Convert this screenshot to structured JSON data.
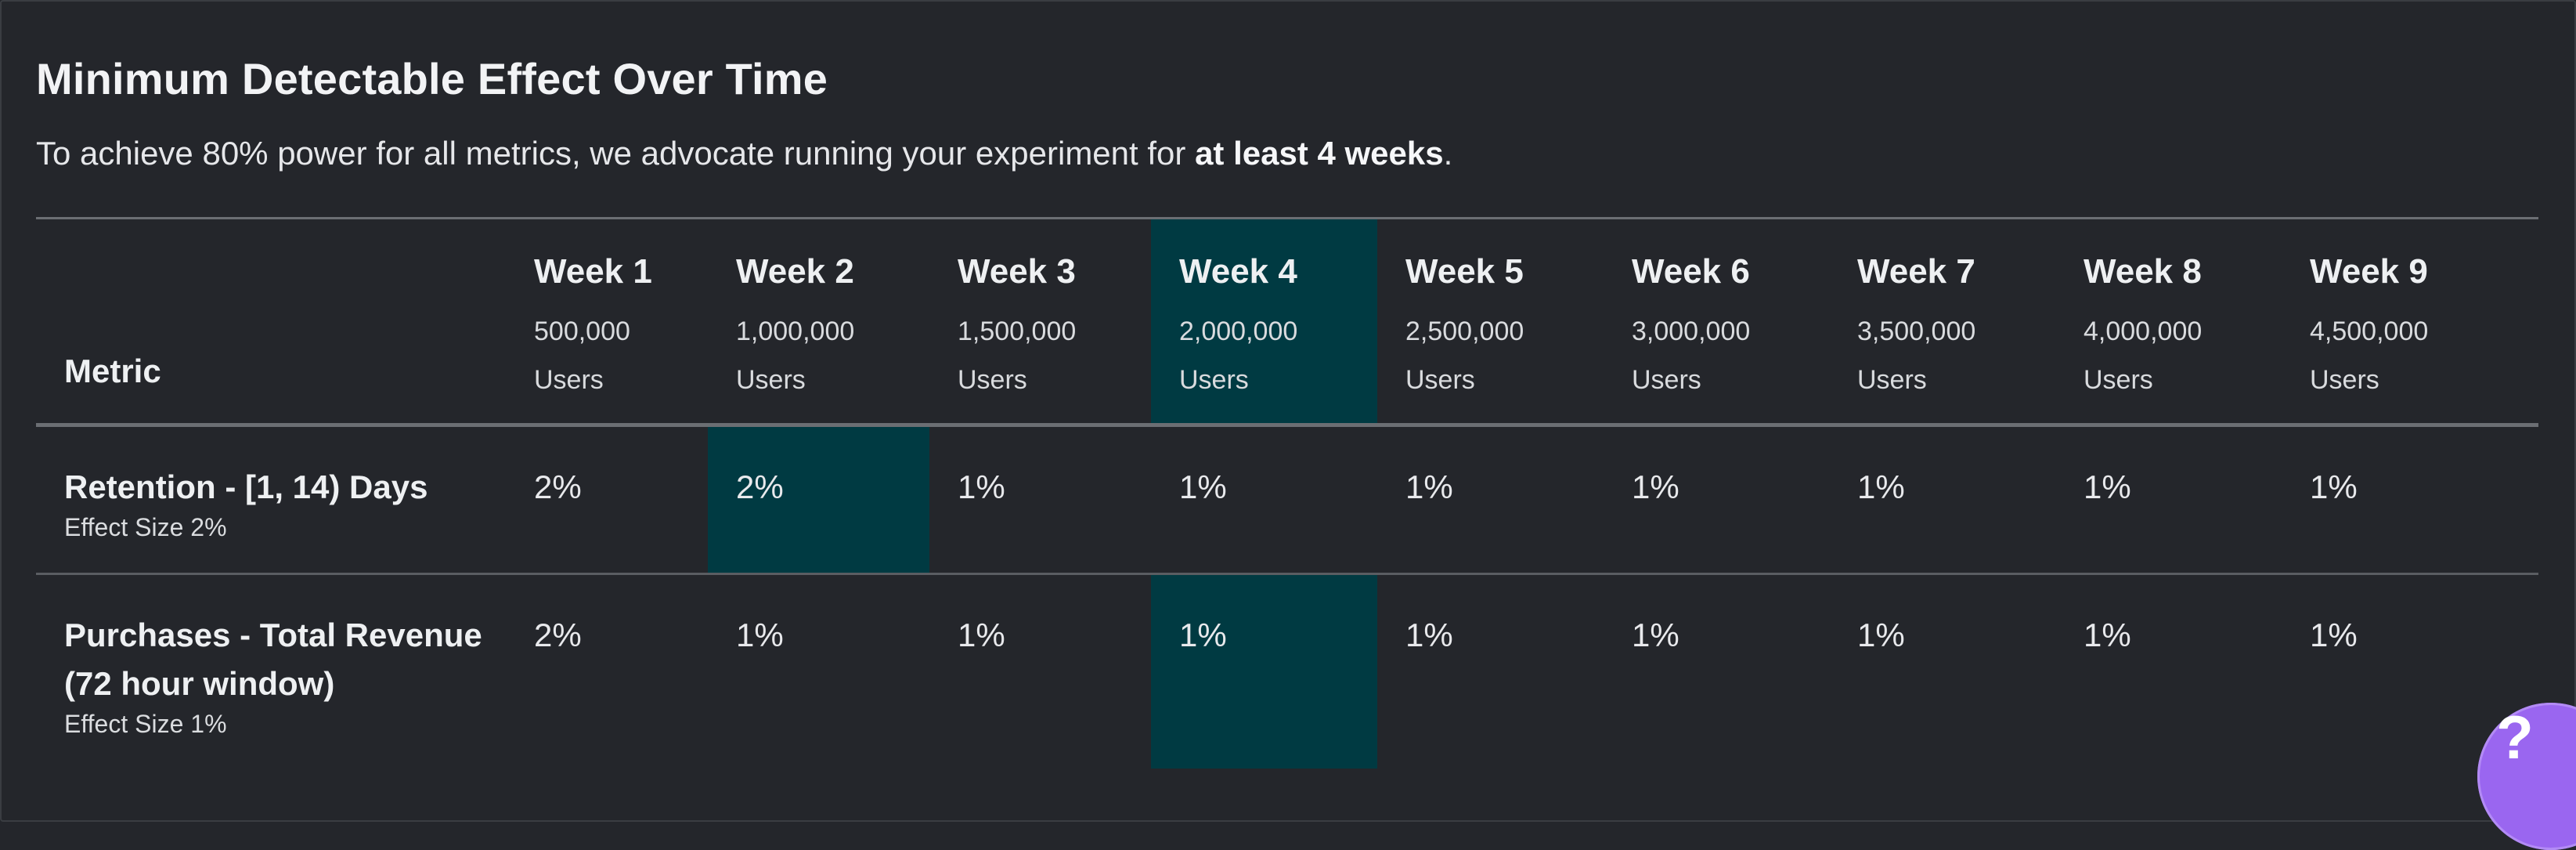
{
  "header": {
    "title": "Minimum Detectable Effect Over Time",
    "subtitle_prefix": "To achieve 80% power for all metrics, we advocate running your experiment for ",
    "subtitle_bold": "at least 4 weeks",
    "subtitle_suffix": "."
  },
  "table": {
    "metric_header": "Metric",
    "weeks": [
      {
        "label": "Week 1",
        "users": "500,000",
        "unit": "Users"
      },
      {
        "label": "Week 2",
        "users": "1,000,000",
        "unit": "Users"
      },
      {
        "label": "Week 3",
        "users": "1,500,000",
        "unit": "Users"
      },
      {
        "label": "Week 4",
        "users": "2,000,000",
        "unit": "Users"
      },
      {
        "label": "Week 5",
        "users": "2,500,000",
        "unit": "Users"
      },
      {
        "label": "Week 6",
        "users": "3,000,000",
        "unit": "Users"
      },
      {
        "label": "Week 7",
        "users": "3,500,000",
        "unit": "Users"
      },
      {
        "label": "Week 8",
        "users": "4,000,000",
        "unit": "Users"
      },
      {
        "label": "Week 9",
        "users": "4,500,000",
        "unit": "Users"
      }
    ],
    "rows": [
      {
        "name": "Retention - [1, 14) Days",
        "effect": "Effect Size 2%",
        "values": [
          "2%",
          "2%",
          "1%",
          "1%",
          "1%",
          "1%",
          "1%",
          "1%",
          "1%"
        ]
      },
      {
        "name": "Purchases - Total Revenue (72 hour window)",
        "effect": "Effect Size 1%",
        "values": [
          "2%",
          "1%",
          "1%",
          "1%",
          "1%",
          "1%",
          "1%",
          "1%",
          "1%"
        ]
      }
    ]
  },
  "colors": {
    "background": "#24262b",
    "highlight": "#003a42",
    "help_button": "#9a66f0"
  },
  "help": {
    "label": "?",
    "icon": "question-icon"
  }
}
